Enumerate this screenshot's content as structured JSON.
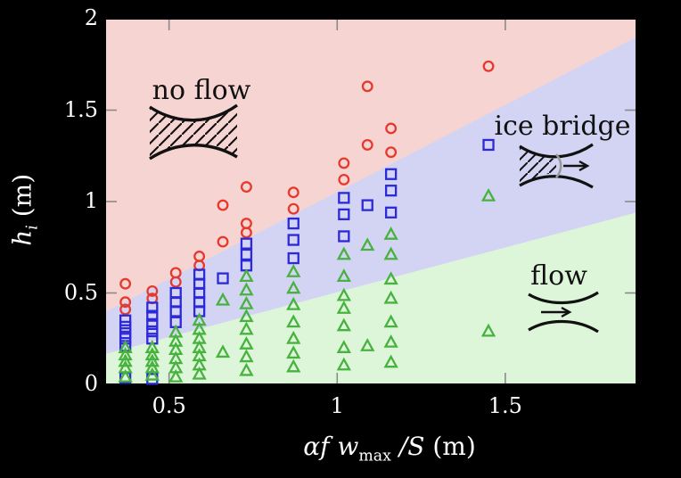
{
  "chart_data": {
    "type": "scatter",
    "title": "",
    "xlabel": "αf w_max /S (m)",
    "ylabel": "h_i (m)",
    "xlabel_parts": {
      "math_a": "αf w",
      "sub": "max",
      "math_b": " /S",
      "unit": " (m)"
    },
    "ylabel_parts": {
      "math_a": "h",
      "sub": "i",
      "unit": " (m)"
    },
    "xlim": [
      0.31,
      1.89
    ],
    "ylim": [
      0,
      2
    ],
    "x_tick_values": [
      0.5,
      1.0,
      1.5
    ],
    "x_tick_labels": [
      "0.5",
      "1",
      "1.5"
    ],
    "y_tick_values": [
      0,
      0.5,
      1.0,
      1.5,
      2.0
    ],
    "y_tick_labels": [
      "0",
      "0.5",
      "1",
      "1.5",
      "2"
    ],
    "grid": false,
    "legend_position": "none",
    "frame_color": "#000000",
    "tick_color": "#8a8a8a",
    "label_color": "#ffffff",
    "regions": [
      {
        "name": "no flow",
        "fill": "#f6d4d1"
      },
      {
        "name": "ice bridge",
        "fill": "#d3d3f3"
      },
      {
        "name": "flow",
        "fill": "#ddf6d9"
      }
    ],
    "region_boundaries": {
      "upper_line": {
        "x": [
          0.31,
          1.89
        ],
        "h": [
          0.395,
          1.9
        ]
      },
      "lower_line": {
        "x": [
          0.31,
          1.89
        ],
        "h": [
          0.166,
          0.94
        ]
      }
    },
    "annotations": [
      {
        "text": "no flow"
      },
      {
        "text": "ice bridge"
      },
      {
        "text": "flow"
      }
    ],
    "series": [
      {
        "name": "no-flow",
        "marker": "circle",
        "color": "#e6392d",
        "points": [
          [
            0.37,
            0.55
          ],
          [
            0.37,
            0.45
          ],
          [
            0.37,
            0.41
          ],
          [
            0.45,
            0.51
          ],
          [
            0.45,
            0.47
          ],
          [
            0.52,
            0.61
          ],
          [
            0.52,
            0.56
          ],
          [
            0.59,
            0.7
          ],
          [
            0.59,
            0.65
          ],
          [
            0.66,
            0.98
          ],
          [
            0.66,
            0.78
          ],
          [
            0.73,
            1.08
          ],
          [
            0.73,
            0.88
          ],
          [
            0.73,
            0.83
          ],
          [
            0.87,
            1.05
          ],
          [
            0.87,
            0.96
          ],
          [
            1.02,
            1.21
          ],
          [
            1.02,
            1.12
          ],
          [
            1.09,
            1.63
          ],
          [
            1.09,
            1.31
          ],
          [
            1.16,
            1.4
          ],
          [
            1.16,
            1.27
          ],
          [
            1.45,
            1.74
          ]
        ]
      },
      {
        "name": "ice-bridge",
        "marker": "square",
        "color": "#2b29d8",
        "points": [
          [
            0.37,
            0.35
          ],
          [
            0.37,
            0.315
          ],
          [
            0.37,
            0.28
          ],
          [
            0.37,
            0.25
          ],
          [
            0.37,
            0.21
          ],
          [
            0.37,
            0.035
          ],
          [
            0.45,
            0.42
          ],
          [
            0.45,
            0.375
          ],
          [
            0.45,
            0.33
          ],
          [
            0.45,
            0.29
          ],
          [
            0.45,
            0.25
          ],
          [
            0.45,
            0.03
          ],
          [
            0.52,
            0.5
          ],
          [
            0.52,
            0.45
          ],
          [
            0.52,
            0.4
          ],
          [
            0.52,
            0.34
          ],
          [
            0.59,
            0.6
          ],
          [
            0.59,
            0.55
          ],
          [
            0.59,
            0.5
          ],
          [
            0.59,
            0.45
          ],
          [
            0.59,
            0.4
          ],
          [
            0.66,
            0.58
          ],
          [
            0.73,
            0.77
          ],
          [
            0.73,
            0.71
          ],
          [
            0.73,
            0.65
          ],
          [
            0.87,
            0.88
          ],
          [
            0.87,
            0.79
          ],
          [
            0.87,
            0.69
          ],
          [
            1.02,
            1.02
          ],
          [
            1.02,
            0.93
          ],
          [
            1.02,
            0.81
          ],
          [
            1.09,
            0.98
          ],
          [
            1.16,
            1.15
          ],
          [
            1.16,
            1.06
          ],
          [
            1.16,
            0.94
          ],
          [
            1.45,
            1.31
          ]
        ]
      },
      {
        "name": "flow",
        "marker": "triangle",
        "color": "#47b33e",
        "points": [
          [
            0.37,
            0.2
          ],
          [
            0.37,
            0.16
          ],
          [
            0.37,
            0.125
          ],
          [
            0.37,
            0.09
          ],
          [
            0.37,
            0.04
          ],
          [
            0.45,
            0.2
          ],
          [
            0.45,
            0.16
          ],
          [
            0.45,
            0.125
          ],
          [
            0.45,
            0.09
          ],
          [
            0.45,
            0.05
          ],
          [
            0.52,
            0.285
          ],
          [
            0.52,
            0.235
          ],
          [
            0.52,
            0.19
          ],
          [
            0.52,
            0.14
          ],
          [
            0.52,
            0.09
          ],
          [
            0.52,
            0.04
          ],
          [
            0.59,
            0.35
          ],
          [
            0.59,
            0.3
          ],
          [
            0.59,
            0.25
          ],
          [
            0.59,
            0.2
          ],
          [
            0.59,
            0.155
          ],
          [
            0.59,
            0.105
          ],
          [
            0.59,
            0.055
          ],
          [
            0.66,
            0.46
          ],
          [
            0.66,
            0.175
          ],
          [
            0.73,
            0.59
          ],
          [
            0.73,
            0.515
          ],
          [
            0.73,
            0.44
          ],
          [
            0.73,
            0.37
          ],
          [
            0.73,
            0.3
          ],
          [
            0.73,
            0.22
          ],
          [
            0.73,
            0.15
          ],
          [
            0.73,
            0.075
          ],
          [
            0.87,
            0.615
          ],
          [
            0.87,
            0.525
          ],
          [
            0.87,
            0.435
          ],
          [
            0.87,
            0.34
          ],
          [
            0.87,
            0.25
          ],
          [
            0.87,
            0.17
          ],
          [
            0.87,
            0.095
          ],
          [
            1.02,
            0.71
          ],
          [
            1.02,
            0.59
          ],
          [
            1.02,
            0.485
          ],
          [
            1.02,
            0.415
          ],
          [
            1.02,
            0.32
          ],
          [
            1.02,
            0.2
          ],
          [
            1.02,
            0.105
          ],
          [
            1.09,
            0.76
          ],
          [
            1.09,
            0.21
          ],
          [
            1.16,
            0.82
          ],
          [
            1.16,
            0.71
          ],
          [
            1.16,
            0.575
          ],
          [
            1.16,
            0.47
          ],
          [
            1.16,
            0.34
          ],
          [
            1.16,
            0.23
          ],
          [
            1.16,
            0.12
          ],
          [
            1.45,
            1.03
          ],
          [
            1.45,
            0.29
          ]
        ]
      }
    ]
  }
}
